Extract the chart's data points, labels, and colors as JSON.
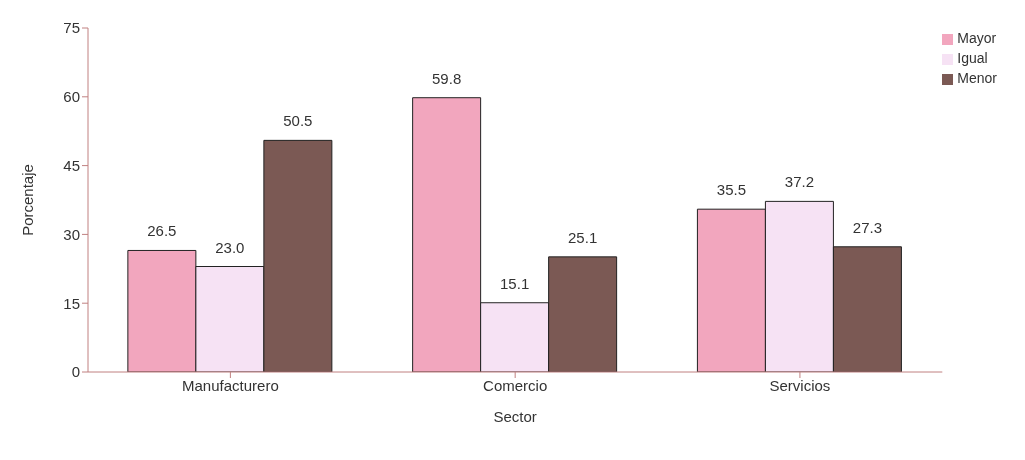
{
  "chart_data": {
    "type": "bar",
    "xlabel": "Sector",
    "ylabel": "Porcentaje",
    "categories": [
      "Manufacturero",
      "Comercio",
      "Servicios"
    ],
    "series": [
      {
        "name": "Mayor",
        "color": "#f2a6be",
        "values": [
          26.5,
          59.8,
          35.5
        ],
        "value_labels": [
          "26.5",
          "59.8",
          "35.5"
        ]
      },
      {
        "name": "Igual",
        "color": "#f6e2f4",
        "values": [
          23.0,
          15.1,
          37.2
        ],
        "value_labels": [
          "23.0",
          "15.1",
          "37.2"
        ]
      },
      {
        "name": "Menor",
        "color": "#7b5954",
        "values": [
          50.5,
          25.1,
          27.3
        ],
        "value_labels": [
          "50.5",
          "25.1",
          "27.3"
        ]
      }
    ],
    "ylim": [
      0,
      75
    ],
    "yticks": [
      0,
      15,
      30,
      45,
      60,
      75
    ],
    "grid": false,
    "legend": "top right"
  }
}
